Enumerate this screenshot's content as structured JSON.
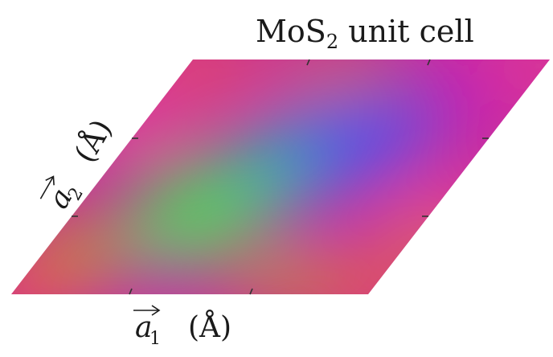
{
  "title": {
    "main": "MoS",
    "sub": "2",
    "rest": " unit cell"
  },
  "axis_a1": {
    "vector": "a",
    "index": "1",
    "unit": "(Å)"
  },
  "axis_a2": {
    "vector": "a",
    "index": "2",
    "unit": "(Å)"
  },
  "colors": {
    "red": "#e8524a",
    "magenta": "#d01aa8",
    "blue": "#4a50ff",
    "cyan": "#18b8c8",
    "green": "#40f040",
    "olive": "#b8a810",
    "pink": "#e8409a",
    "tick": "#333333"
  }
}
